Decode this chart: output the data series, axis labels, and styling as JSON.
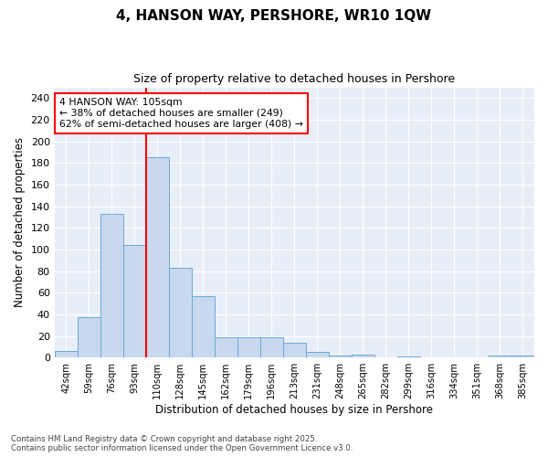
{
  "title1": "4, HANSON WAY, PERSHORE, WR10 1QW",
  "title2": "Size of property relative to detached houses in Pershore",
  "xlabel": "Distribution of detached houses by size in Pershore",
  "ylabel": "Number of detached properties",
  "bin_labels": [
    "42sqm",
    "59sqm",
    "76sqm",
    "93sqm",
    "110sqm",
    "128sqm",
    "145sqm",
    "162sqm",
    "179sqm",
    "196sqm",
    "213sqm",
    "231sqm",
    "248sqm",
    "265sqm",
    "282sqm",
    "299sqm",
    "316sqm",
    "334sqm",
    "351sqm",
    "368sqm",
    "385sqm"
  ],
  "bar_heights": [
    6,
    37,
    133,
    104,
    185,
    83,
    57,
    19,
    19,
    19,
    14,
    5,
    2,
    3,
    0,
    1,
    0,
    0,
    0,
    2,
    2
  ],
  "bar_color": "#c8d8ef",
  "bar_edge_color": "#6aaad4",
  "red_line_x": 3.5,
  "annotation_line1": "4 HANSON WAY: 105sqm",
  "annotation_line2": "← 38% of detached houses are smaller (249)",
  "annotation_line3": "62% of semi-detached houses are larger (408) →",
  "ylim": [
    0,
    250
  ],
  "yticks": [
    0,
    20,
    40,
    60,
    80,
    100,
    120,
    140,
    160,
    180,
    200,
    220,
    240
  ],
  "plot_bg_color": "#e8eef8",
  "grid_color": "#ffffff",
  "fig_bg_color": "#ffffff",
  "footer_text": "Contains HM Land Registry data © Crown copyright and database right 2025.\nContains public sector information licensed under the Open Government Licence v3.0."
}
